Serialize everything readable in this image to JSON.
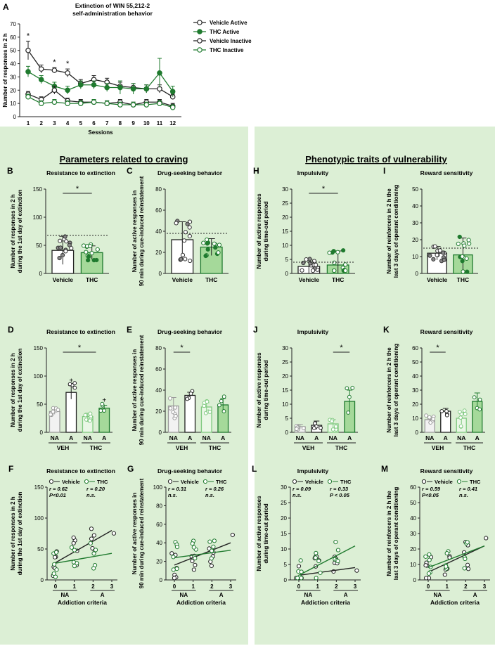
{
  "colors": {
    "panel": "#dcefd5",
    "thc": "#1f7a2e",
    "thc_fill": "#a5d99a",
    "thc_light": "#7fc97f",
    "veh": "#222222",
    "veh_light": "#9a9a9a",
    "veh_fill": "#e6e6e6"
  },
  "header_letter": "A",
  "sections": {
    "left_title": "Parameters related to craving",
    "right_title": "Phenotypic traits of vulnerability"
  },
  "chart_data": [
    {
      "id": "A",
      "type": "line",
      "title": "Extinction of WIN 55,212-2 self-administration behavior",
      "ylabel": "Number of responses in 2 h",
      "xlabel": "Sessions",
      "ylim": [
        0,
        70
      ],
      "yticks": [
        0,
        10,
        20,
        30,
        40,
        50,
        60,
        70
      ],
      "categories": [
        "1",
        "2",
        "3",
        "4",
        "5",
        "6",
        "7",
        "8",
        "9",
        "10",
        "11",
        "12"
      ],
      "series": [
        {
          "name": "Vehicle Active",
          "values": [
            50,
            36,
            35,
            33,
            25,
            28,
            26,
            23,
            22,
            21,
            21,
            15
          ],
          "errors": [
            7,
            3,
            2,
            3,
            3,
            3,
            3,
            3,
            3,
            3,
            3,
            2
          ]
        },
        {
          "name": "THC Active",
          "values": [
            34,
            28,
            23,
            20,
            24,
            24,
            22,
            22,
            21,
            21,
            33,
            19
          ],
          "errors": [
            4,
            3,
            3,
            3,
            3,
            3,
            3,
            5,
            4,
            3,
            11,
            4
          ]
        },
        {
          "name": "Vehicle Inactive",
          "values": [
            17,
            13,
            20,
            12,
            11,
            11,
            10,
            11,
            9,
            11,
            11,
            8
          ],
          "errors": [
            2,
            2,
            3,
            2,
            2,
            2,
            2,
            2,
            2,
            2,
            2,
            2
          ]
        },
        {
          "name": "THC Inactive",
          "values": [
            15,
            10,
            11,
            10,
            10,
            11,
            10,
            9,
            9,
            9,
            10,
            7
          ],
          "errors": [
            2,
            2,
            2,
            2,
            2,
            2,
            2,
            2,
            2,
            2,
            2,
            2
          ]
        }
      ],
      "sig_marks": [
        {
          "session": "1",
          "label": "*"
        },
        {
          "session": "3",
          "label": "*"
        },
        {
          "session": "4",
          "label": "*"
        }
      ]
    },
    {
      "id": "B",
      "type": "bar",
      "title": "Resistance to extinction",
      "ylabel": "Number of responses in 2 h during the 1st day of extinction",
      "ylim": [
        0,
        150
      ],
      "yticks": [
        0,
        50,
        100,
        150
      ],
      "categories": [
        "Vehicle",
        "THC"
      ],
      "values": [
        41,
        37
      ],
      "errors": [
        25,
        12
      ],
      "sig": "*",
      "ref_line": 68
    },
    {
      "id": "C",
      "type": "bar",
      "title": "Drug-seeking behavior",
      "ylabel": "Number of active responses in 90 min during cue-induced reinstatement",
      "ylim": [
        0,
        80
      ],
      "yticks": [
        0,
        20,
        40,
        60,
        80
      ],
      "categories": [
        "Vehicle",
        "THC"
      ],
      "values": [
        32,
        25
      ],
      "errors": [
        17,
        8
      ],
      "ref_line": 38
    },
    {
      "id": "H",
      "type": "bar",
      "title": "Impulsivity",
      "ylabel": "Number of active responses during time-out period",
      "ylim": [
        0,
        30
      ],
      "yticks": [
        0,
        5,
        10,
        15,
        20,
        25,
        30
      ],
      "categories": [
        "Vehicle",
        "THC"
      ],
      "values": [
        2.5,
        3
      ],
      "errors": [
        2.5,
        5
      ],
      "sig": "*",
      "ref_line": 4
    },
    {
      "id": "I",
      "type": "bar",
      "title": "Reward sensitivity",
      "ylabel": "Number of reinforcers in 2 h the last 3 days of operant conditioning",
      "ylim": [
        0,
        50
      ],
      "yticks": [
        0,
        10,
        20,
        30,
        40,
        50
      ],
      "categories": [
        "Vehicle",
        "THC"
      ],
      "values": [
        12,
        11
      ],
      "errors": [
        4,
        10
      ],
      "ref_line": 15
    },
    {
      "id": "D",
      "type": "bar",
      "title": "Resistance to extinction",
      "ylabel": "Number of responses in 2 h during the 1st day of extinction",
      "ylim": [
        0,
        150
      ],
      "yticks": [
        0,
        50,
        100,
        150
      ],
      "categories": [
        "NA",
        "A",
        "NA",
        "A"
      ],
      "groups": [
        "VEH",
        "THC"
      ],
      "values": [
        37,
        71,
        28,
        43
      ],
      "errors": [
        5,
        12,
        6,
        5
      ],
      "sig": "*",
      "plus": [
        "+",
        "+"
      ]
    },
    {
      "id": "E",
      "type": "bar",
      "title": "Drug-seeking behavior",
      "ylabel": "Number of active responses in 90 min during cue-induced reinstatement",
      "ylim": [
        0,
        80
      ],
      "yticks": [
        0,
        20,
        40,
        60,
        80
      ],
      "categories": [
        "NA",
        "A",
        "NA",
        "A"
      ],
      "groups": [
        "VEH",
        "THC"
      ],
      "values": [
        25,
        35,
        24,
        26
      ],
      "errors": [
        8,
        3,
        4,
        6
      ],
      "sig": "*"
    },
    {
      "id": "J",
      "type": "bar",
      "title": "Impulsivity",
      "ylabel": "Number of active responses during time-out period",
      "ylim": [
        0,
        30
      ],
      "yticks": [
        0,
        5,
        10,
        15,
        20,
        25,
        30
      ],
      "categories": [
        "NA",
        "A",
        "NA",
        "A"
      ],
      "groups": [
        "VEH",
        "THC"
      ],
      "values": [
        2,
        2.5,
        3,
        11
      ],
      "errors": [
        0.8,
        1.5,
        1.5,
        4
      ],
      "sig": "*"
    },
    {
      "id": "K",
      "type": "bar",
      "title": "Reward sensitivity",
      "ylabel": "Number of reinforcers in 2 h the last 3 days of operant conditioning",
      "ylim": [
        0,
        60
      ],
      "yticks": [
        0,
        10,
        20,
        30,
        40,
        50,
        60
      ],
      "categories": [
        "NA",
        "A",
        "NA",
        "A"
      ],
      "groups": [
        "VEH",
        "THC"
      ],
      "values": [
        9,
        15,
        10,
        22
      ],
      "errors": [
        2,
        2,
        4,
        6
      ],
      "sig": "*"
    },
    {
      "id": "F",
      "type": "scatter",
      "title": "Resistance to extinction",
      "ylabel": "Number of responses in 2 h during the 1st day of extinction",
      "xlabel": "Addiction criteria",
      "ylim": [
        0,
        150
      ],
      "yticks": [
        0,
        50,
        100,
        150
      ],
      "xticks": [
        "0",
        "1",
        "2",
        "3"
      ],
      "xgroups": [
        "NA",
        "A"
      ],
      "legend": [
        "Vehicle",
        "THC"
      ],
      "stats": {
        "vehicle": [
          "r = 0.62",
          "P<0.01"
        ],
        "thc": [
          "r = 0.20",
          "n.s."
        ]
      },
      "fit": {
        "vehicle": [
          28,
          80
        ],
        "thc": [
          27,
          43
        ]
      }
    },
    {
      "id": "G",
      "type": "scatter",
      "title": "Drug-seeking behavior",
      "ylabel": "Number of active responses in 90 min during cue-induced reinstatement",
      "xlabel": "Addiction criteria",
      "ylim": [
        0,
        100
      ],
      "yticks": [
        0,
        20,
        40,
        60,
        80,
        100
      ],
      "xticks": [
        "0",
        "1",
        "2",
        "3"
      ],
      "xgroups": [
        "NA",
        "A"
      ],
      "legend": [
        "Vehicle",
        "THC"
      ],
      "stats": {
        "vehicle": [
          "r = 0.31",
          "n.s."
        ],
        "thc": [
          "r = 0.26",
          "n.s."
        ]
      },
      "fit": {
        "vehicle": [
          16,
          40
        ],
        "thc": [
          24,
          32
        ]
      }
    },
    {
      "id": "L",
      "type": "scatter",
      "title": "Impulsivity",
      "ylabel": "Number of active responses during time-out period",
      "xlabel": "Addiction criteria",
      "ylim": [
        0,
        30
      ],
      "yticks": [
        0,
        5,
        10,
        15,
        20,
        25,
        30
      ],
      "xticks": [
        "0",
        "1",
        "2",
        "3"
      ],
      "xgroups": [
        "NA",
        "A"
      ],
      "legend": [
        "Vehicle",
        "THC"
      ],
      "stats": {
        "vehicle": [
          "r = 0.09",
          "n.s."
        ],
        "thc": [
          "r = 0.33",
          "P < 0.05"
        ]
      },
      "fit": {
        "vehicle": [
          1.5,
          4
        ],
        "thc": [
          1.5,
          11
        ]
      }
    },
    {
      "id": "M",
      "type": "scatter",
      "title": "Reward sensitivity",
      "ylabel": "Number of reinforcers in 2 h the last 3 days of operant conditioning",
      "xlabel": "Addiction criteria",
      "ylim": [
        0,
        60
      ],
      "yticks": [
        0,
        10,
        20,
        30,
        40,
        50,
        60
      ],
      "xticks": [
        "0",
        "1",
        "2",
        "3"
      ],
      "xgroups": [
        "NA",
        "A"
      ],
      "legend": [
        "Vehicle",
        "THC"
      ],
      "stats": {
        "vehicle": [
          "r = 0.59",
          "P<0.05"
        ],
        "thc": [
          "r = 0.41",
          "n.s."
        ]
      },
      "fit": {
        "vehicle": [
          5,
          22
        ],
        "thc": [
          8,
          22
        ]
      }
    }
  ]
}
